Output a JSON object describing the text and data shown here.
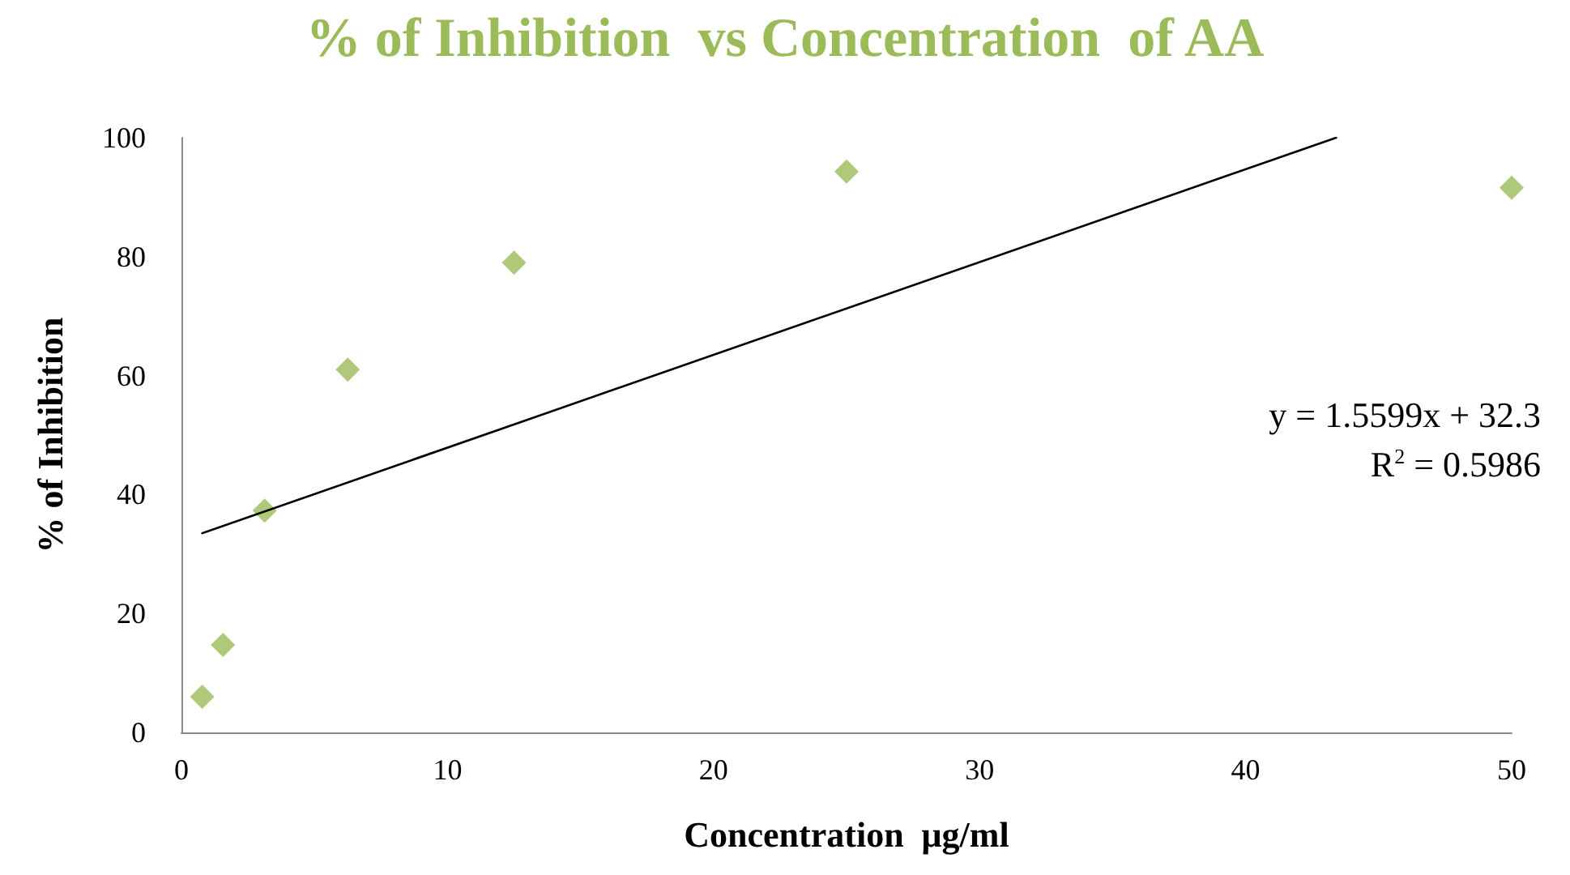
{
  "chart_data": {
    "type": "scatter",
    "title": "% of Inhibition  vs Concentration  of AA",
    "xlabel": "Concentration  μg/ml",
    "ylabel": "% of Inhibition",
    "marker": "diamond",
    "grid": false,
    "xlim": [
      0,
      50
    ],
    "xticks": [
      0,
      10,
      20,
      30,
      40,
      50
    ],
    "ylim": [
      0,
      100
    ],
    "yticks": [
      0,
      20,
      40,
      60,
      80,
      100
    ],
    "series": [
      {
        "color": "#9bbb59",
        "x": [
          0.78,
          1.56,
          3.125,
          6.25,
          12.5,
          25,
          50
        ],
        "values": [
          6,
          14.7,
          37.3,
          61,
          79,
          94.3,
          91.6
        ]
      },
      {
        "type": "line",
        "color": "#000000",
        "marker": "none",
        "x": [
          0.78,
          43.4
        ],
        "values": [
          33.5,
          100
        ]
      }
    ],
    "annotations": [
      "y = 1.5599x + 32.3",
      "R$^{2}$ = 0.5986"
    ]
  }
}
